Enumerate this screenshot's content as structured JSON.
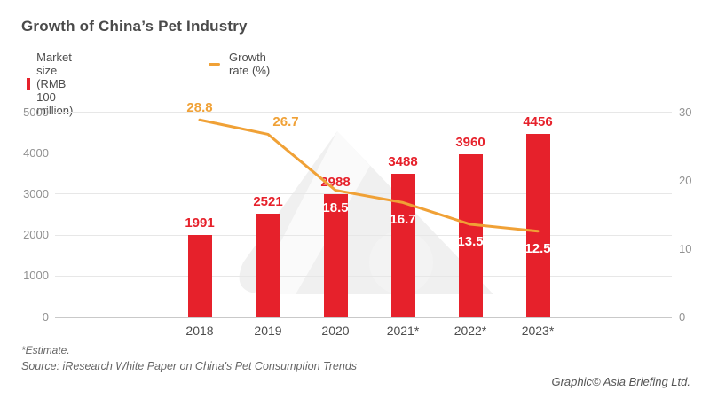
{
  "title": "Growth of China’s Pet Industry",
  "legend": [
    {
      "label": "Market size (RMB 100 million)",
      "swatch": "red-square",
      "color": "#e6212b"
    },
    {
      "label": "Growth rate (%)",
      "swatch": "orange-line",
      "color": "#f0a136"
    }
  ],
  "chart_data": {
    "type": "bar",
    "subtype": "bar-line-combo",
    "categories": [
      "2018",
      "2019",
      "2020",
      "2021*",
      "2022*",
      "2023*"
    ],
    "series": [
      {
        "name": "Market size (RMB 100 million)",
        "type": "bar",
        "axis": "left",
        "values": [
          1991,
          2521,
          2988,
          3488,
          3960,
          4456
        ],
        "color": "#e6212b"
      },
      {
        "name": "Growth rate (%)",
        "type": "line",
        "axis": "right",
        "values": [
          28.8,
          26.7,
          18.5,
          16.7,
          13.5,
          12.5
        ],
        "color": "#f0a136"
      }
    ],
    "left_axis": {
      "ticks": [
        5000,
        4000,
        3000,
        2000,
        1000,
        0
      ],
      "min": 0,
      "max": 5000
    },
    "right_axis": {
      "ticks": [
        30,
        20,
        10,
        0
      ],
      "min": 0,
      "max": 30
    },
    "grid": true,
    "legend_position": "top-left",
    "value_label_colors": {
      "bar": "#e6212b",
      "line_above": "#f0a136",
      "line_on_bar": "#ffffff"
    }
  },
  "footnotes": {
    "estimate": "*Estimate.",
    "source": "Source: iResearch White Paper on China's Pet Consumption Trends",
    "credit": "Graphic© Asia Briefing Ltd."
  }
}
